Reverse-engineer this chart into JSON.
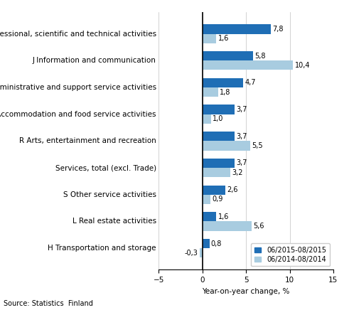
{
  "categories": [
    "H Transportation and storage",
    "L Real estate activities",
    "S Other service activities",
    "Services, total (excl. Trade)",
    "R Arts, entertainment and recreation",
    "I Accommodation and food service activities",
    "N Administrative and support service activities",
    "J Information and communication",
    "M Professional, scientific and technical activities"
  ],
  "values_2015": [
    0.8,
    1.6,
    2.6,
    3.7,
    3.7,
    3.7,
    4.7,
    5.8,
    7.8
  ],
  "values_2014": [
    -0.3,
    5.6,
    0.9,
    3.2,
    5.5,
    1.0,
    1.8,
    10.4,
    1.6
  ],
  "labels_2015": [
    "0,8",
    "1,6",
    "2,6",
    "3,7",
    "3,7",
    "3,7",
    "4,7",
    "5,8",
    "7,8"
  ],
  "labels_2014": [
    "-0,3",
    "5,6",
    "0,9",
    "3,2",
    "5,5",
    "1,0",
    "1,8",
    "10,4",
    "1,6"
  ],
  "color_2015": "#1f6eb5",
  "color_2014": "#a8cce0",
  "xlim": [
    -5,
    15
  ],
  "xticks": [
    -5,
    0,
    5,
    10,
    15
  ],
  "xlabel": "Year-on-year change, %",
  "legend_2015": "06/2015-08/2015",
  "legend_2014": "06/2014-08/2014",
  "source": "Source: Statistics  Finland",
  "bar_height": 0.35,
  "label_fontsize": 7.0,
  "tick_fontsize": 7.5,
  "xlabel_fontsize": 7.5,
  "legend_fontsize": 7.0,
  "source_fontsize": 7.0
}
